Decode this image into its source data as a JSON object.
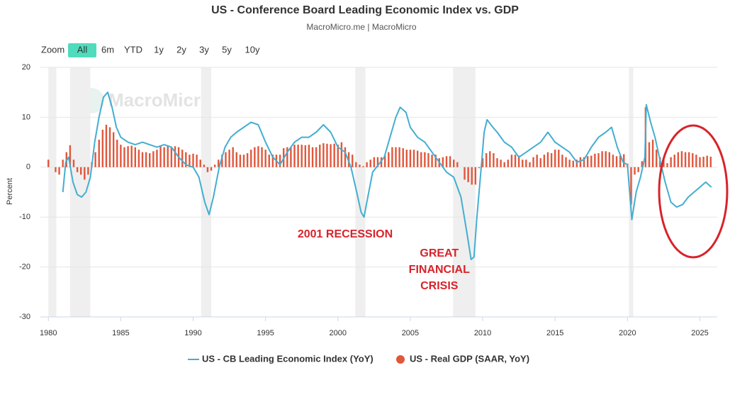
{
  "chart_data": {
    "type": "combo",
    "title": "US - Conference Board Leading Economic Index vs. GDP",
    "subtitle": "MacroMicro.me | MacroMicro",
    "watermark": "MacroMicro",
    "range_selector": {
      "label": "Zoom",
      "options": [
        "All",
        "6m",
        "YTD",
        "1y",
        "2y",
        "3y",
        "5y",
        "10y"
      ],
      "selected": "All"
    },
    "y_label": "Percent",
    "xlim": [
      1979.45,
      2026.2
    ],
    "xticks": [
      1980,
      1985,
      1990,
      1995,
      2000,
      2005,
      2010,
      2015,
      2020,
      2025
    ],
    "ylim": [
      -30,
      20
    ],
    "yticks": [
      -30,
      -20,
      -10,
      0,
      10,
      20
    ],
    "grid": true,
    "recession_bands": [
      [
        1980.0,
        1980.55
      ],
      [
        1981.5,
        1982.9
      ],
      [
        1990.55,
        1991.25
      ],
      [
        2001.2,
        2001.9
      ],
      [
        2007.95,
        2009.5
      ],
      [
        2020.1,
        2020.4
      ]
    ],
    "annotations": [
      {
        "lines": [
          "2001 RECESSION"
        ],
        "x": 2000.5,
        "y": -13.5
      },
      {
        "lines": [
          "GREAT",
          "FINANCIAL",
          "CRISIS"
        ],
        "x": 2007.0,
        "y": -17.3
      }
    ],
    "series": [
      {
        "name": "US - CB Leading Economic Index (YoY)",
        "type": "line",
        "color": "#43aed1",
        "x": [
          1981.0,
          1981.2,
          1981.4,
          1981.7,
          1982.0,
          1982.3,
          1982.6,
          1982.9,
          1983.2,
          1983.5,
          1983.8,
          1984.1,
          1984.4,
          1984.7,
          1985.0,
          1985.5,
          1986.0,
          1986.5,
          1987.0,
          1987.5,
          1988.0,
          1988.5,
          1989.0,
          1989.5,
          1990.0,
          1990.4,
          1990.8,
          1991.1,
          1991.4,
          1991.8,
          1992.2,
          1992.6,
          1993.0,
          1993.5,
          1994.0,
          1994.5,
          1995.0,
          1995.5,
          1996.0,
          1996.5,
          1997.0,
          1997.5,
          1998.0,
          1998.5,
          1999.0,
          1999.5,
          2000.0,
          2000.5,
          2000.9,
          2001.3,
          2001.6,
          2001.8,
          2002.0,
          2002.4,
          2002.8,
          2003.2,
          2003.6,
          2004.0,
          2004.3,
          2004.7,
          2005.0,
          2005.5,
          2006.0,
          2006.5,
          2007.0,
          2007.5,
          2008.0,
          2008.5,
          2008.9,
          2009.2,
          2009.4,
          2009.6,
          2009.9,
          2010.1,
          2010.3,
          2010.7,
          2011.0,
          2011.5,
          2012.0,
          2012.5,
          2013.0,
          2013.5,
          2014.0,
          2014.5,
          2015.0,
          2015.5,
          2016.0,
          2016.5,
          2017.0,
          2017.5,
          2018.0,
          2018.5,
          2018.9,
          2019.3,
          2019.7,
          2020.0,
          2020.3,
          2020.6,
          2020.9,
          2021.2,
          2021.3,
          2021.6,
          2021.9,
          2022.2,
          2022.6,
          2023.0,
          2023.4,
          2023.8,
          2024.2,
          2024.6,
          2025.0,
          2025.4,
          2025.8
        ],
        "values": [
          -5,
          1,
          2,
          -3,
          -5.5,
          -6,
          -5,
          -2,
          5,
          10,
          14,
          15,
          12,
          8,
          6,
          5,
          4.5,
          5,
          4.5,
          4,
          4.5,
          4,
          2,
          0.5,
          0,
          -2,
          -7,
          -9.5,
          -6,
          0,
          4,
          6,
          7,
          8,
          9,
          8.5,
          5,
          2,
          0.5,
          3,
          5,
          6,
          6,
          7,
          8.5,
          7,
          4,
          3,
          0,
          -5,
          -9,
          -10,
          -7,
          -1,
          0.5,
          2,
          6,
          10,
          12,
          11,
          8,
          6,
          5,
          3,
          1,
          -1,
          -2,
          -6,
          -13,
          -18.5,
          -18,
          -10,
          0,
          7,
          9.5,
          8,
          7,
          5,
          4,
          2,
          3,
          4,
          5,
          7,
          5,
          4,
          3,
          1,
          1.5,
          4,
          6,
          7,
          8,
          4,
          1,
          0.5,
          -10.5,
          -5,
          -2,
          2,
          12.5,
          9,
          6,
          2,
          -3,
          -7,
          -8,
          -7.5,
          -6,
          -5,
          -4,
          -3,
          -4
        ]
      },
      {
        "name": "US - Real GDP (SAAR, YoY)",
        "type": "bar",
        "color": "#e0573c",
        "x": [
          1980.0,
          1980.25,
          1980.5,
          1980.75,
          1981.0,
          1981.25,
          1981.5,
          1981.75,
          1982.0,
          1982.25,
          1982.5,
          1982.75,
          1983.0,
          1983.25,
          1983.5,
          1983.75,
          1984.0,
          1984.25,
          1984.5,
          1984.75,
          1985.0,
          1985.25,
          1985.5,
          1985.75,
          1986.0,
          1986.25,
          1986.5,
          1986.75,
          1987.0,
          1987.25,
          1987.5,
          1987.75,
          1988.0,
          1988.25,
          1988.5,
          1988.75,
          1989.0,
          1989.25,
          1989.5,
          1989.75,
          1990.0,
          1990.25,
          1990.5,
          1990.75,
          1991.0,
          1991.25,
          1991.5,
          1991.75,
          1992.0,
          1992.25,
          1992.5,
          1992.75,
          1993.0,
          1993.25,
          1993.5,
          1993.75,
          1994.0,
          1994.25,
          1994.5,
          1994.75,
          1995.0,
          1995.25,
          1995.5,
          1995.75,
          1996.0,
          1996.25,
          1996.5,
          1996.75,
          1997.0,
          1997.25,
          1997.5,
          1997.75,
          1998.0,
          1998.25,
          1998.5,
          1998.75,
          1999.0,
          1999.25,
          1999.5,
          1999.75,
          2000.0,
          2000.25,
          2000.5,
          2000.75,
          2001.0,
          2001.25,
          2001.5,
          2001.75,
          2002.0,
          2002.25,
          2002.5,
          2002.75,
          2003.0,
          2003.25,
          2003.5,
          2003.75,
          2004.0,
          2004.25,
          2004.5,
          2004.75,
          2005.0,
          2005.25,
          2005.5,
          2005.75,
          2006.0,
          2006.25,
          2006.5,
          2006.75,
          2007.0,
          2007.25,
          2007.5,
          2007.75,
          2008.0,
          2008.25,
          2008.5,
          2008.75,
          2009.0,
          2009.25,
          2009.5,
          2009.75,
          2010.0,
          2010.25,
          2010.5,
          2010.75,
          2011.0,
          2011.25,
          2011.5,
          2011.75,
          2012.0,
          2012.25,
          2012.5,
          2012.75,
          2013.0,
          2013.25,
          2013.5,
          2013.75,
          2014.0,
          2014.25,
          2014.5,
          2014.75,
          2015.0,
          2015.25,
          2015.5,
          2015.75,
          2016.0,
          2016.25,
          2016.5,
          2016.75,
          2017.0,
          2017.25,
          2017.5,
          2017.75,
          2018.0,
          2018.25,
          2018.5,
          2018.75,
          2019.0,
          2019.25,
          2019.5,
          2019.75,
          2020.0,
          2020.25,
          2020.5,
          2020.75,
          2021.0,
          2021.25,
          2021.5,
          2021.75,
          2022.0,
          2022.25,
          2022.5,
          2022.75,
          2023.0,
          2023.25,
          2023.5,
          2023.75,
          2024.0,
          2024.25,
          2024.5,
          2024.75,
          2025.0,
          2025.25,
          2025.5,
          2025.75
        ],
        "values": [
          1.5,
          0,
          -1,
          -1.5,
          1.5,
          3,
          4.4,
          1.5,
          -1,
          -1.5,
          -2.5,
          -1.5,
          1,
          3,
          5.5,
          7.5,
          8.5,
          8,
          7,
          5.5,
          4.5,
          4,
          4.2,
          4.3,
          4,
          3.5,
          3,
          3,
          2.8,
          3.2,
          3.5,
          4.2,
          4,
          4.3,
          4,
          4.2,
          4,
          3.5,
          3,
          2.5,
          2.7,
          2.5,
          1.5,
          0.5,
          -1,
          -0.7,
          0.5,
          1.5,
          2.5,
          3,
          3.5,
          4,
          3,
          2.5,
          2.5,
          2.8,
          3.5,
          4,
          4.2,
          4,
          3.5,
          2.5,
          2.5,
          2.5,
          2.5,
          3.8,
          4,
          4,
          4.5,
          4.5,
          4.5,
          4.4,
          4.5,
          4,
          4,
          4.5,
          4.8,
          4.7,
          4.6,
          4.7,
          4.5,
          5,
          4,
          3,
          2.5,
          1,
          0.5,
          0.2,
          1,
          1.5,
          2,
          2,
          2,
          2.3,
          3,
          4,
          4,
          4,
          3.8,
          3.5,
          3.5,
          3.5,
          3.3,
          3,
          3,
          2.8,
          2.5,
          2.5,
          1.8,
          2,
          2.2,
          2.2,
          1.5,
          1,
          0,
          -2.5,
          -3,
          -3.5,
          -3.5,
          -0.2,
          1.8,
          2.8,
          3.2,
          2.8,
          1.8,
          1.5,
          1,
          1.5,
          2.5,
          2.5,
          2.3,
          1.5,
          1.5,
          1,
          2,
          2.5,
          1.8,
          2.5,
          3,
          2.8,
          3.5,
          3.5,
          2.5,
          2,
          1.5,
          1.3,
          1.5,
          2,
          2,
          2.2,
          2.3,
          2.7,
          2.8,
          3.2,
          3.2,
          3,
          2.5,
          2.2,
          2.3,
          2.6,
          0.7,
          -7.5,
          -1.5,
          -1,
          1.2,
          12,
          5,
          5.5,
          3.5,
          2,
          1.5,
          0.8,
          2,
          2.5,
          3,
          3.2,
          3,
          3,
          2.8,
          2.5,
          2,
          2.1,
          2.3,
          2.1
        ]
      }
    ]
  }
}
